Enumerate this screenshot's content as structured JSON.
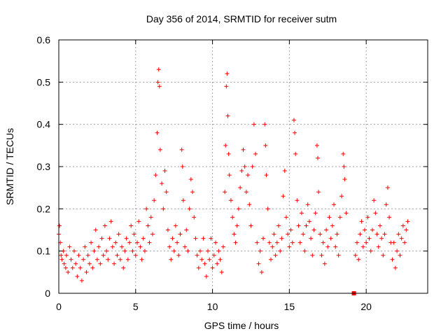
{
  "chart_data": {
    "type": "scatter",
    "title": "Day 356 of 2014, SRMTID for receiver sutm",
    "xlabel": "GPS time / hours",
    "ylabel": "SRMTID / TECUs",
    "xlim": [
      0,
      24
    ],
    "ylim": [
      0,
      0.6
    ],
    "xticks": [
      0,
      5,
      10,
      15,
      20
    ],
    "yticks": [
      0,
      0.1,
      0.2,
      0.3,
      0.4,
      0.5,
      0.6
    ],
    "xtick_labels": [
      "0",
      "5",
      "10",
      "15",
      "20"
    ],
    "ytick_labels": [
      "0",
      "0.1",
      "0.2",
      "0.3",
      "0.4",
      "0.5",
      "0.6"
    ],
    "grid": true,
    "marker": "plus",
    "color": "#ff0000",
    "series": [
      {
        "name": "SRMTID",
        "points": [
          [
            0.0,
            0.14
          ],
          [
            0.05,
            0.16
          ],
          [
            0.1,
            0.12
          ],
          [
            0.15,
            0.09
          ],
          [
            0.2,
            0.08
          ],
          [
            0.3,
            0.1
          ],
          [
            0.35,
            0.07
          ],
          [
            0.45,
            0.06
          ],
          [
            0.5,
            0.09
          ],
          [
            0.6,
            0.05
          ],
          [
            0.7,
            0.11
          ],
          [
            0.8,
            0.08
          ],
          [
            0.9,
            0.06
          ],
          [
            1.0,
            0.1
          ],
          [
            1.1,
            0.07
          ],
          [
            1.2,
            0.04
          ],
          [
            1.3,
            0.09
          ],
          [
            1.4,
            0.06
          ],
          [
            1.5,
            0.03
          ],
          [
            1.6,
            0.08
          ],
          [
            1.7,
            0.11
          ],
          [
            1.8,
            0.05
          ],
          [
            1.9,
            0.09
          ],
          [
            2.0,
            0.07
          ],
          [
            2.1,
            0.12
          ],
          [
            2.2,
            0.06
          ],
          [
            2.3,
            0.1
          ],
          [
            2.4,
            0.15
          ],
          [
            2.5,
            0.08
          ],
          [
            2.6,
            0.11
          ],
          [
            2.7,
            0.07
          ],
          [
            2.8,
            0.13
          ],
          [
            2.9,
            0.09
          ],
          [
            3.0,
            0.16
          ],
          [
            3.1,
            0.1
          ],
          [
            3.2,
            0.08
          ],
          [
            3.3,
            0.13
          ],
          [
            3.4,
            0.17
          ],
          [
            3.5,
            0.11
          ],
          [
            3.6,
            0.07
          ],
          [
            3.7,
            0.12
          ],
          [
            3.8,
            0.09
          ],
          [
            3.9,
            0.14
          ],
          [
            4.0,
            0.08
          ],
          [
            4.1,
            0.11
          ],
          [
            4.2,
            0.06
          ],
          [
            4.3,
            0.1
          ],
          [
            4.4,
            0.13
          ],
          [
            4.5,
            0.08
          ],
          [
            4.6,
            0.12
          ],
          [
            4.7,
            0.16
          ],
          [
            4.8,
            0.1
          ],
          [
            4.9,
            0.14
          ],
          [
            5.0,
            0.09
          ],
          [
            5.1,
            0.12
          ],
          [
            5.2,
            0.17
          ],
          [
            5.3,
            0.11
          ],
          [
            5.4,
            0.08
          ],
          [
            5.5,
            0.13
          ],
          [
            5.6,
            0.1
          ],
          [
            5.7,
            0.2
          ],
          [
            5.8,
            0.16
          ],
          [
            5.9,
            0.12
          ],
          [
            6.0,
            0.18
          ],
          [
            6.1,
            0.14
          ],
          [
            6.2,
            0.22
          ],
          [
            6.3,
            0.28
          ],
          [
            6.4,
            0.38
          ],
          [
            6.45,
            0.5
          ],
          [
            6.5,
            0.53
          ],
          [
            6.55,
            0.49
          ],
          [
            6.6,
            0.34
          ],
          [
            6.7,
            0.26
          ],
          [
            6.8,
            0.2
          ],
          [
            6.9,
            0.29
          ],
          [
            7.0,
            0.24
          ],
          [
            7.1,
            0.15
          ],
          [
            7.2,
            0.11
          ],
          [
            7.3,
            0.08
          ],
          [
            7.4,
            0.13
          ],
          [
            7.5,
            0.1
          ],
          [
            7.6,
            0.16
          ],
          [
            7.7,
            0.12
          ],
          [
            7.8,
            0.09
          ],
          [
            7.9,
            0.14
          ],
          [
            8.0,
            0.34
          ],
          [
            8.05,
            0.3
          ],
          [
            8.1,
            0.22
          ],
          [
            8.2,
            0.11
          ],
          [
            8.3,
            0.15
          ],
          [
            8.4,
            0.1
          ],
          [
            8.5,
            0.2
          ],
          [
            8.6,
            0.27
          ],
          [
            8.7,
            0.24
          ],
          [
            8.8,
            0.18
          ],
          [
            8.9,
            0.13
          ],
          [
            9.0,
            0.09
          ],
          [
            9.1,
            0.06
          ],
          [
            9.2,
            0.1
          ],
          [
            9.3,
            0.08
          ],
          [
            9.4,
            0.13
          ],
          [
            9.5,
            0.07
          ],
          [
            9.6,
            0.04
          ],
          [
            9.7,
            0.1
          ],
          [
            9.8,
            0.08
          ],
          [
            9.9,
            0.13
          ],
          [
            10.0,
            0.06
          ],
          [
            10.1,
            0.09
          ],
          [
            10.2,
            0.12
          ],
          [
            10.3,
            0.07
          ],
          [
            10.4,
            0.1
          ],
          [
            10.5,
            0.08
          ],
          [
            10.6,
            0.05
          ],
          [
            10.7,
            0.11
          ],
          [
            10.8,
            0.24
          ],
          [
            10.85,
            0.35
          ],
          [
            10.9,
            0.49
          ],
          [
            10.95,
            0.52
          ],
          [
            11.0,
            0.42
          ],
          [
            11.05,
            0.33
          ],
          [
            11.1,
            0.28
          ],
          [
            11.2,
            0.22
          ],
          [
            11.3,
            0.18
          ],
          [
            11.4,
            0.14
          ],
          [
            11.5,
            0.12
          ],
          [
            11.6,
            0.16
          ],
          [
            11.7,
            0.2
          ],
          [
            11.8,
            0.25
          ],
          [
            11.9,
            0.29
          ],
          [
            12.0,
            0.34
          ],
          [
            12.1,
            0.3
          ],
          [
            12.2,
            0.24
          ],
          [
            12.3,
            0.28
          ],
          [
            12.4,
            0.21
          ],
          [
            12.5,
            0.16
          ],
          [
            12.6,
            0.3
          ],
          [
            12.7,
            0.4
          ],
          [
            12.8,
            0.33
          ],
          [
            12.9,
            0.12
          ],
          [
            13.0,
            0.07
          ],
          [
            13.1,
            0.1
          ],
          [
            13.2,
            0.05
          ],
          [
            13.3,
            0.13
          ],
          [
            13.4,
            0.4
          ],
          [
            13.45,
            0.35
          ],
          [
            13.5,
            0.28
          ],
          [
            13.6,
            0.2
          ],
          [
            13.7,
            0.12
          ],
          [
            13.8,
            0.08
          ],
          [
            13.9,
            0.11
          ],
          [
            14.0,
            0.14
          ],
          [
            14.1,
            0.09
          ],
          [
            14.2,
            0.12
          ],
          [
            14.3,
            0.16
          ],
          [
            14.4,
            0.1
          ],
          [
            14.5,
            0.13
          ],
          [
            14.6,
            0.23
          ],
          [
            14.7,
            0.29
          ],
          [
            14.8,
            0.18
          ],
          [
            14.9,
            0.14
          ],
          [
            15.0,
            0.11
          ],
          [
            15.1,
            0.15
          ],
          [
            15.2,
            0.12
          ],
          [
            15.3,
            0.41
          ],
          [
            15.35,
            0.38
          ],
          [
            15.4,
            0.33
          ],
          [
            15.5,
            0.22
          ],
          [
            15.6,
            0.16
          ],
          [
            15.7,
            0.12
          ],
          [
            15.8,
            0.19
          ],
          [
            15.9,
            0.14
          ],
          [
            16.0,
            0.1
          ],
          [
            16.1,
            0.16
          ],
          [
            16.2,
            0.21
          ],
          [
            16.3,
            0.17
          ],
          [
            16.4,
            0.13
          ],
          [
            16.5,
            0.09
          ],
          [
            16.6,
            0.15
          ],
          [
            16.7,
            0.19
          ],
          [
            16.8,
            0.35
          ],
          [
            16.85,
            0.32
          ],
          [
            16.9,
            0.24
          ],
          [
            17.0,
            0.14
          ],
          [
            17.1,
            0.09
          ],
          [
            17.2,
            0.12
          ],
          [
            17.3,
            0.07
          ],
          [
            17.4,
            0.15
          ],
          [
            17.5,
            0.11
          ],
          [
            17.6,
            0.18
          ],
          [
            17.7,
            0.13
          ],
          [
            17.8,
            0.16
          ],
          [
            17.9,
            0.21
          ],
          [
            18.0,
            0.11
          ],
          [
            18.1,
            0.14
          ],
          [
            18.2,
            0.09
          ],
          [
            18.3,
            0.18
          ],
          [
            18.4,
            0.23
          ],
          [
            18.5,
            0.33
          ],
          [
            18.55,
            0.3
          ],
          [
            18.6,
            0.27
          ],
          [
            18.7,
            0.19
          ],
          [
            19.3,
            0.09
          ],
          [
            19.4,
            0.12
          ],
          [
            19.5,
            0.08
          ],
          [
            19.6,
            0.14
          ],
          [
            19.7,
            0.17
          ],
          [
            19.8,
            0.11
          ],
          [
            19.9,
            0.15
          ],
          [
            20.0,
            0.12
          ],
          [
            20.1,
            0.18
          ],
          [
            20.2,
            0.13
          ],
          [
            20.3,
            0.1
          ],
          [
            20.4,
            0.15
          ],
          [
            20.5,
            0.22
          ],
          [
            20.6,
            0.19
          ],
          [
            20.7,
            0.14
          ],
          [
            20.8,
            0.11
          ],
          [
            20.9,
            0.16
          ],
          [
            21.0,
            0.13
          ],
          [
            21.1,
            0.09
          ],
          [
            21.2,
            0.14
          ],
          [
            21.3,
            0.21
          ],
          [
            21.4,
            0.25
          ],
          [
            21.5,
            0.18
          ],
          [
            21.6,
            0.12
          ],
          [
            21.7,
            0.08
          ],
          [
            21.8,
            0.12
          ],
          [
            21.9,
            0.06
          ],
          [
            22.0,
            0.1
          ],
          [
            22.1,
            0.14
          ],
          [
            22.2,
            0.09
          ],
          [
            22.3,
            0.13
          ],
          [
            22.4,
            0.16
          ],
          [
            22.5,
            0.12
          ],
          [
            22.6,
            0.15
          ],
          [
            22.7,
            0.17
          ]
        ]
      }
    ],
    "annotations": [
      {
        "type": "marker",
        "shape": "square",
        "x": 19.2,
        "y": 0.0
      }
    ]
  }
}
